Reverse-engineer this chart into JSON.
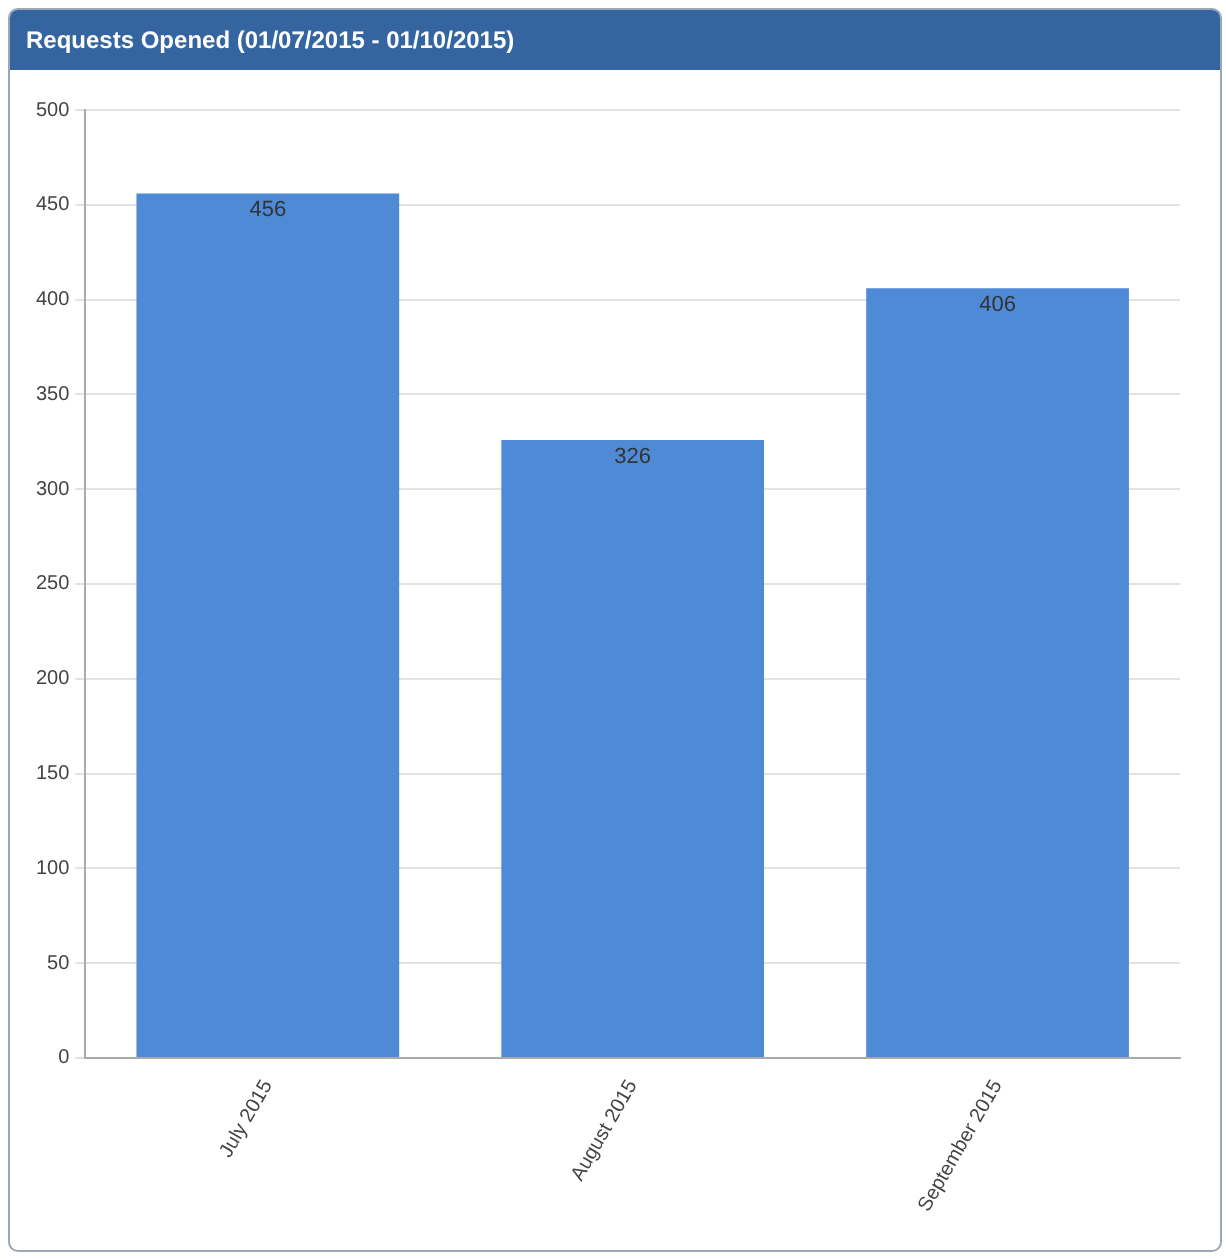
{
  "chart_data": {
    "type": "bar",
    "title": "Requests Opened (01/07/2015 - 01/10/2015)",
    "categories": [
      "July 2015",
      "August 2015",
      "September 2015"
    ],
    "values": [
      456,
      326,
      406
    ],
    "color": "#4f8ad6",
    "ylim": [
      0,
      500
    ],
    "yticks": [
      0,
      50,
      100,
      150,
      200,
      250,
      300,
      350,
      400,
      450,
      500
    ],
    "grid": "y",
    "data_labels": true
  }
}
